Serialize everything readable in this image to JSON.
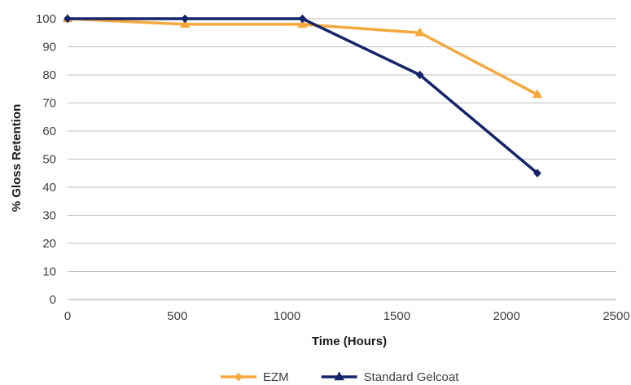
{
  "chart_data": {
    "type": "line",
    "xlabel": "Time (Hours)",
    "ylabel": "% Gloss Retention",
    "xlim": [
      0,
      2500
    ],
    "ylim": [
      0,
      100
    ],
    "x_ticks": [
      0,
      500,
      1000,
      1500,
      2000,
      2500
    ],
    "y_ticks": [
      0,
      10,
      20,
      30,
      40,
      50,
      60,
      70,
      80,
      90,
      100
    ],
    "grid": "horizontal",
    "legend_position": "bottom-center",
    "series": [
      {
        "name": "EZM",
        "color": "#F5A83C",
        "marker": "triangle",
        "legend_marker": "diamond",
        "x": [
          0,
          535,
          1070,
          1605,
          2140
        ],
        "y": [
          100,
          98,
          98,
          95,
          73
        ]
      },
      {
        "name": "Standard Gelcoat",
        "color": "#16256B",
        "marker": "diamond",
        "legend_marker": "triangle",
        "x": [
          0,
          535,
          1070,
          1605,
          2140
        ],
        "y": [
          100,
          100,
          100,
          80,
          45
        ]
      }
    ]
  }
}
